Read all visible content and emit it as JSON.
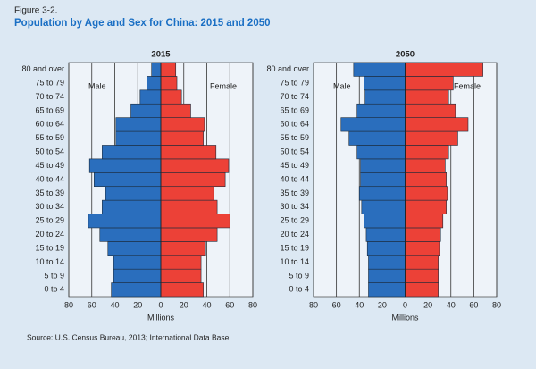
{
  "figure_label": "Figure 3-2.",
  "title": "Population by Age and Sex for China: 2015 and 2050",
  "source": "Source: U.S. Census Bureau, 2013; International Data Base.",
  "chart_data": [
    {
      "type": "pyramid",
      "title": "2015",
      "xlabel": "Millions",
      "categories": [
        "0 to 4",
        "5 to 9",
        "10 to 14",
        "15 to 19",
        "20 to 24",
        "25 to 29",
        "30 to 34",
        "35 to 39",
        "40 to 44",
        "45 to 49",
        "50 to 54",
        "55 to 59",
        "60 to 64",
        "65 to 69",
        "70 to 74",
        "75 to 79",
        "80 and over"
      ],
      "series": [
        {
          "name": "Male",
          "color": "#2a6ebd",
          "side": "left",
          "values": [
            43,
            41,
            41,
            46,
            53,
            63,
            51,
            48,
            58,
            62,
            51,
            39,
            39,
            26,
            18,
            12,
            8
          ]
        },
        {
          "name": "Female",
          "color": "#ec4137",
          "side": "right",
          "values": [
            37,
            35,
            35,
            39,
            49,
            60,
            49,
            46,
            56,
            59,
            48,
            37,
            38,
            26,
            18,
            14,
            13
          ]
        }
      ],
      "xlim": [
        -80,
        80
      ],
      "xticks": [
        {
          "value": -80,
          "label": "80"
        },
        {
          "value": -60,
          "label": "60"
        },
        {
          "value": -40,
          "label": "40"
        },
        {
          "value": -20,
          "label": "20"
        },
        0,
        20,
        40,
        60,
        80
      ],
      "grid": true
    },
    {
      "type": "pyramid",
      "title": "2050",
      "xlabel": "Millions",
      "categories": [
        "0 to 4",
        "5 to 9",
        "10 to 14",
        "15 to 19",
        "20 to 24",
        "25 to 29",
        "30 to 34",
        "35 to 39",
        "40 to 44",
        "45 to 49",
        "50 to 54",
        "55 to 59",
        "60 to 64",
        "65 to 69",
        "70 to 74",
        "75 to 79",
        "80 and over"
      ],
      "series": [
        {
          "name": "Male",
          "color": "#2a6ebd",
          "side": "left",
          "values": [
            32,
            32,
            32,
            33,
            34,
            36,
            38,
            40,
            39,
            39,
            42,
            49,
            56,
            42,
            35,
            36,
            45
          ]
        },
        {
          "name": "Female",
          "color": "#ec4137",
          "side": "right",
          "values": [
            29,
            29,
            29,
            30,
            31,
            33,
            36,
            37,
            36,
            35,
            38,
            46,
            55,
            44,
            38,
            42,
            68
          ]
        }
      ],
      "xlim": [
        -80,
        80
      ],
      "xticks": [
        {
          "value": -80,
          "label": "80"
        },
        {
          "value": -60,
          "label": "60"
        },
        {
          "value": -40,
          "label": "40"
        },
        {
          "value": -20,
          "label": "20"
        },
        0,
        20,
        40,
        60,
        80
      ],
      "grid": true
    }
  ]
}
